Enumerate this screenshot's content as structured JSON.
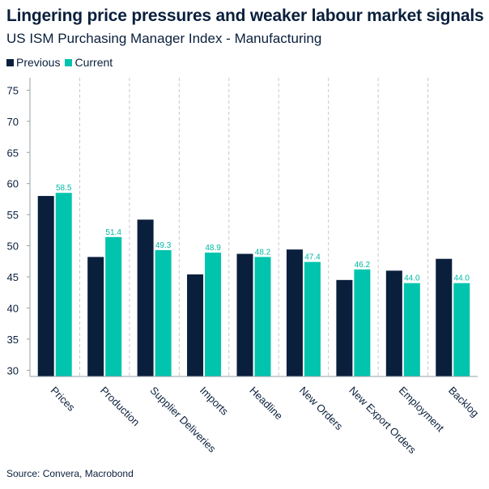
{
  "title": "Lingering price pressures and weaker labour market signals",
  "subtitle": "US ISM Purchasing Manager Index - Manufacturing",
  "source": "Source: Convera, Macrobond",
  "colors": {
    "previous": "#0a1f3c",
    "current": "#00c4ad",
    "label": "#00b8a3",
    "grid": "#c8c8c8"
  },
  "chart_data": {
    "type": "bar",
    "title": "Lingering price pressures and weaker labour market signals",
    "subtitle": "US ISM Purchasing Manager Index - Manufacturing",
    "categories": [
      "Prices",
      "Production",
      "Supplier Deliveries",
      "Imports",
      "Headline",
      "New Orders",
      "New Export Orders",
      "Employment",
      "Backlog"
    ],
    "series": [
      {
        "name": "Previous",
        "values": [
          58.0,
          48.2,
          54.2,
          45.4,
          48.7,
          49.4,
          44.5,
          46.0,
          47.9
        ]
      },
      {
        "name": "Current",
        "values": [
          58.5,
          51.4,
          49.3,
          48.9,
          48.2,
          47.4,
          46.2,
          44.0,
          44.0
        ]
      }
    ],
    "data_labels": [
      "58.5",
      "51.4",
      "49.3",
      "48.9",
      "48.2",
      "47.4",
      "46.2",
      "44.0",
      "44.0"
    ],
    "yticks": [
      "30",
      "35",
      "40",
      "45",
      "50",
      "55",
      "60",
      "65",
      "70",
      "75"
    ],
    "ylim": [
      29,
      77
    ],
    "xlabel": "",
    "ylabel": "",
    "legend": "top-left",
    "grid": "vertical-dashed"
  }
}
